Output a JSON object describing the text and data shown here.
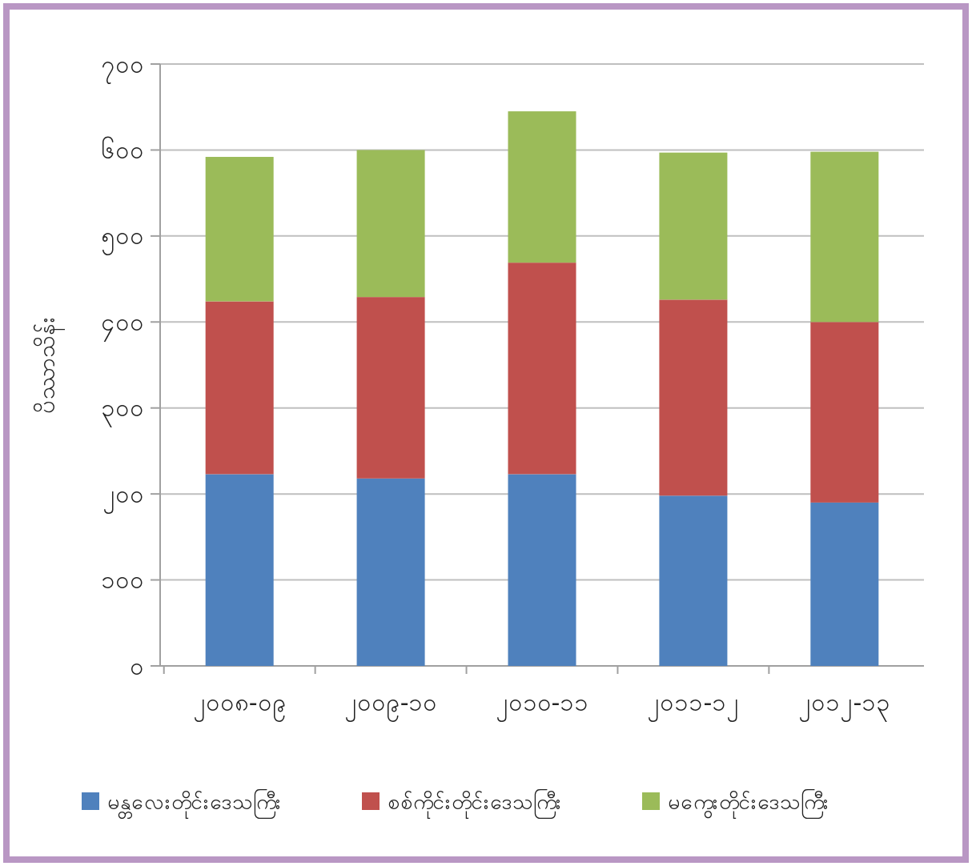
{
  "chart_data": {
    "type": "bar",
    "stacked": true,
    "ylabel": "ပိဿာသိန်း",
    "categories": [
      "၂၀၀၈-၀၉",
      "၂၀၀၉-၁၀",
      "၂၀၁၀-၁၁",
      "၂၀၁၁-၁၂",
      "၂၀၁၂-၁၃"
    ],
    "series": [
      {
        "name": "မန္တလေးတိုင်းဒေသကြီး",
        "color": "#4f81bd",
        "values": [
          223,
          218,
          223,
          198,
          190
        ]
      },
      {
        "name": "စစ်ကိုင်းတိုင်းဒေသကြီး",
        "color": "#c0504d",
        "values": [
          201,
          211,
          246,
          228,
          210
        ]
      },
      {
        "name": "မကွေးတိုင်းဒေသကြီး",
        "color": "#9bbb59",
        "values": [
          168,
          171,
          176,
          171,
          198
        ]
      }
    ],
    "ylim": [
      0,
      700
    ],
    "yticks": [
      {
        "value": 0,
        "label": "၀"
      },
      {
        "value": 100,
        "label": "၁၀၀"
      },
      {
        "value": 200,
        "label": "၂၀၀"
      },
      {
        "value": 300,
        "label": "၃၀၀"
      },
      {
        "value": 400,
        "label": "၄၀၀"
      },
      {
        "value": 500,
        "label": "၅၀၀"
      },
      {
        "value": 600,
        "label": "၆၀၀"
      },
      {
        "value": 700,
        "label": "၇၀၀"
      }
    ],
    "grid": "y",
    "legend": "bottom"
  }
}
